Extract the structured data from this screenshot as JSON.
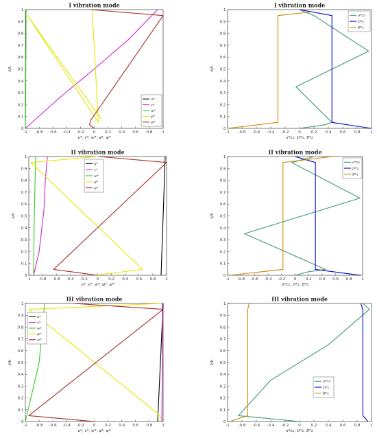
{
  "chart_data": [
    {
      "type": "line",
      "title": "I vibration mode",
      "xlabel": "u*, v*, w*, φ*, ψ*",
      "ylabel": "z̄/h",
      "xlim": [
        -1,
        1
      ],
      "ylim": [
        0,
        1
      ],
      "xticks": [
        -1,
        -0.8,
        -0.6,
        -0.4,
        -0.2,
        0,
        0.2,
        0.4,
        0.6,
        0.8,
        1
      ],
      "yticks": [
        0,
        0.1,
        0.2,
        0.3,
        0.4,
        0.5,
        0.6,
        0.7,
        0.8,
        0.9,
        1
      ],
      "legend_position": "bottom-right",
      "series": [
        {
          "name": "u*",
          "color": "#000000",
          "x": [
            -1.0,
            -0.99
          ],
          "y": [
            0,
            1
          ]
        },
        {
          "name": "v*",
          "color": "#cc22cc",
          "x": [
            -1.0,
            -0.5,
            0.0,
            0.5,
            0.92
          ],
          "y": [
            0,
            0.26,
            0.5,
            0.75,
            1
          ]
        },
        {
          "name": "w*",
          "color": "#33cc22",
          "x": [
            -1.0,
            -0.99
          ],
          "y": [
            0,
            1
          ]
        },
        {
          "name": "φ*",
          "color": "#e6e600",
          "x": [
            -0.03,
            0.06,
            -0.97,
            0.1
          ],
          "y": [
            1,
            0.05,
            0.95,
            0.08
          ]
        },
        {
          "name": "ψ*",
          "color": "#a52a2a",
          "x": [
            -0.05,
            1.0,
            -0.05,
            -0.07,
            0.0
          ],
          "y": [
            1,
            0.95,
            0.07,
            0.03,
            0
          ]
        }
      ]
    },
    {
      "type": "line",
      "title": "I vibration mode",
      "xlabel": "σ*zz, D*z, B*z",
      "ylabel": "z̄/h",
      "xlim": [
        -1,
        1
      ],
      "ylim": [
        0,
        1
      ],
      "xticks": [
        -1,
        -0.8,
        -0.6,
        -0.4,
        -0.2,
        0,
        0.2,
        0.4,
        0.6,
        0.8,
        1
      ],
      "yticks": [
        0,
        0.1,
        0.2,
        0.3,
        0.4,
        0.5,
        0.6,
        0.7,
        0.8,
        0.9,
        1
      ],
      "legend_position": "top-right",
      "series": [
        {
          "name": "σ*zz",
          "color": "#3d9970",
          "x": [
            0,
            0.35,
            0.45,
            -0.05,
            0.96,
            0.2,
            0.0
          ],
          "y": [
            0,
            0.03,
            0.05,
            0.35,
            0.65,
            0.95,
            1
          ]
        },
        {
          "name": "D*z",
          "color": "#0000cc",
          "x": [
            1.0,
            0.45,
            0.45,
            0.0
          ],
          "y": [
            0,
            0.05,
            0.95,
            1
          ]
        },
        {
          "name": "B*z",
          "color": "#cc8800",
          "x": [
            -1.0,
            -0.3,
            -0.3,
            0.15
          ],
          "y": [
            0,
            0.05,
            0.95,
            0.98
          ]
        }
      ]
    },
    {
      "type": "line",
      "title": "II vibration mode",
      "xlabel": "u*, v*, w*, φ*, ψ*",
      "ylabel": "z̄/h",
      "xlim": [
        -1,
        1
      ],
      "ylim": [
        0,
        1
      ],
      "xticks": [
        -1,
        -0.8,
        -0.6,
        -0.4,
        -0.2,
        0,
        0.2,
        0.4,
        0.6,
        0.8,
        1
      ],
      "yticks": [
        0,
        0.1,
        0.2,
        0.3,
        0.4,
        0.5,
        0.6,
        0.7,
        0.8,
        0.9,
        1
      ],
      "legend_position": "top-right",
      "series": [
        {
          "name": "u*",
          "color": "#000000",
          "x": [
            0.92,
            0.95,
            0.98
          ],
          "y": [
            0,
            0.5,
            1
          ]
        },
        {
          "name": "v*",
          "color": "#cc22cc",
          "x": [
            -0.93,
            -0.85,
            -0.78,
            -0.76,
            -0.73
          ],
          "y": [
            0,
            0.2,
            0.55,
            0.8,
            1
          ]
        },
        {
          "name": "w*",
          "color": "#33cc22",
          "x": [
            -0.93,
            -0.92,
            -0.9
          ],
          "y": [
            0,
            0.5,
            1
          ]
        },
        {
          "name": "φ*",
          "color": "#e6e600",
          "x": [
            -0.04,
            0.65,
            -0.97,
            0.0
          ],
          "y": [
            0,
            0.05,
            0.95,
            1
          ]
        },
        {
          "name": "ψ*",
          "color": "#a52a2a",
          "x": [
            0.0,
            -0.64,
            1.0,
            0.02
          ],
          "y": [
            0,
            0.05,
            0.95,
            1
          ]
        }
      ]
    },
    {
      "type": "line",
      "title": "II vibration mode",
      "xlabel": "σ*zz, D*z, B*z",
      "ylabel": "z̄/h",
      "xlim": [
        -1,
        1
      ],
      "ylim": [
        0,
        1
      ],
      "xticks": [
        -1,
        -0.8,
        -0.6,
        -0.4,
        -0.2,
        0,
        0.2,
        0.4,
        0.6,
        0.8,
        1
      ],
      "yticks": [
        0,
        0.1,
        0.2,
        0.3,
        0.4,
        0.5,
        0.6,
        0.7,
        0.8,
        0.9,
        1
      ],
      "legend_position": "top-right",
      "series": [
        {
          "name": "σ*zz",
          "color": "#3d9970",
          "x": [
            0.0,
            0.2,
            0.45,
            -0.75,
            0.96,
            -0.05,
            0.28
          ],
          "y": [
            0,
            0.03,
            0.05,
            0.35,
            0.65,
            0.95,
            1
          ]
        },
        {
          "name": "D*z",
          "color": "#0000cc",
          "x": [
            0.97,
            0.3,
            0.3,
            0.0
          ],
          "y": [
            0,
            0.05,
            0.95,
            1
          ]
        },
        {
          "name": "B*z",
          "color": "#cc8800",
          "x": [
            -0.97,
            -0.18,
            -0.18,
            0.55
          ],
          "y": [
            0,
            0.05,
            0.95,
            1
          ]
        }
      ]
    },
    {
      "type": "line",
      "title": "III vibration mode",
      "xlabel": "u*, v*, w*, φ*, ψ*",
      "ylabel": "z̄/h",
      "xlim": [
        -1,
        1
      ],
      "ylim": [
        0,
        1
      ],
      "xticks": [
        -1,
        -0.8,
        -0.6,
        -0.4,
        -0.2,
        0,
        0.2,
        0.4,
        0.6,
        0.8,
        1
      ],
      "yticks": [
        0,
        0.1,
        0.2,
        0.3,
        0.4,
        0.5,
        0.6,
        0.7,
        0.8,
        0.9,
        1
      ],
      "legend_position": "top-left",
      "series": [
        {
          "name": "u*",
          "color": "#000000",
          "x": [
            0.92,
            0.96,
            1.0
          ],
          "y": [
            0,
            0.5,
            1
          ]
        },
        {
          "name": "v*",
          "color": "#cc22cc",
          "x": [
            0.98,
            0.99,
            0.99
          ],
          "y": [
            0,
            0.5,
            1
          ]
        },
        {
          "name": "w*",
          "color": "#33cc22",
          "x": [
            -1.0,
            -0.8,
            -0.72
          ],
          "y": [
            0,
            0.5,
            1
          ]
        },
        {
          "name": "φ*",
          "color": "#e6e600",
          "x": [
            0.95,
            0.96,
            -0.95,
            0.97
          ],
          "y": [
            0,
            0.05,
            0.95,
            1
          ]
        },
        {
          "name": "ψ*",
          "color": "#a52a2a",
          "x": [
            0.0,
            -0.95,
            1.0,
            -0.3
          ],
          "y": [
            0,
            0.05,
            0.95,
            1
          ]
        }
      ]
    },
    {
      "type": "line",
      "title": "III vibration mode",
      "xlabel": "σ*zz, D*z, B*z",
      "ylabel": "z̄/h",
      "xlim": [
        -1,
        1
      ],
      "ylim": [
        0,
        1
      ],
      "xticks": [
        -1,
        -0.8,
        -0.6,
        -0.4,
        -0.2,
        0,
        0.2,
        0.4,
        0.6,
        0.8,
        1
      ],
      "yticks": [
        0,
        0.1,
        0.2,
        0.3,
        0.4,
        0.5,
        0.6,
        0.7,
        0.8,
        0.9,
        1
      ],
      "legend_position": "bottom-right",
      "series": [
        {
          "name": "σ*zz",
          "color": "#3d9970",
          "x": [
            0.0,
            -0.85,
            -0.4,
            0.4,
            0.97,
            0.88
          ],
          "y": [
            0,
            0.05,
            0.35,
            0.65,
            0.95,
            1
          ]
        },
        {
          "name": "D*z",
          "color": "#0000cc",
          "x": [
            0.95,
            0.88,
            0.88,
            0.85
          ],
          "y": [
            0,
            0.05,
            0.95,
            1
          ]
        },
        {
          "name": "B*z",
          "color": "#cc8800",
          "x": [
            -0.97,
            -0.72,
            -0.72,
            -0.7
          ],
          "y": [
            0,
            0.05,
            0.95,
            1
          ]
        }
      ]
    }
  ]
}
